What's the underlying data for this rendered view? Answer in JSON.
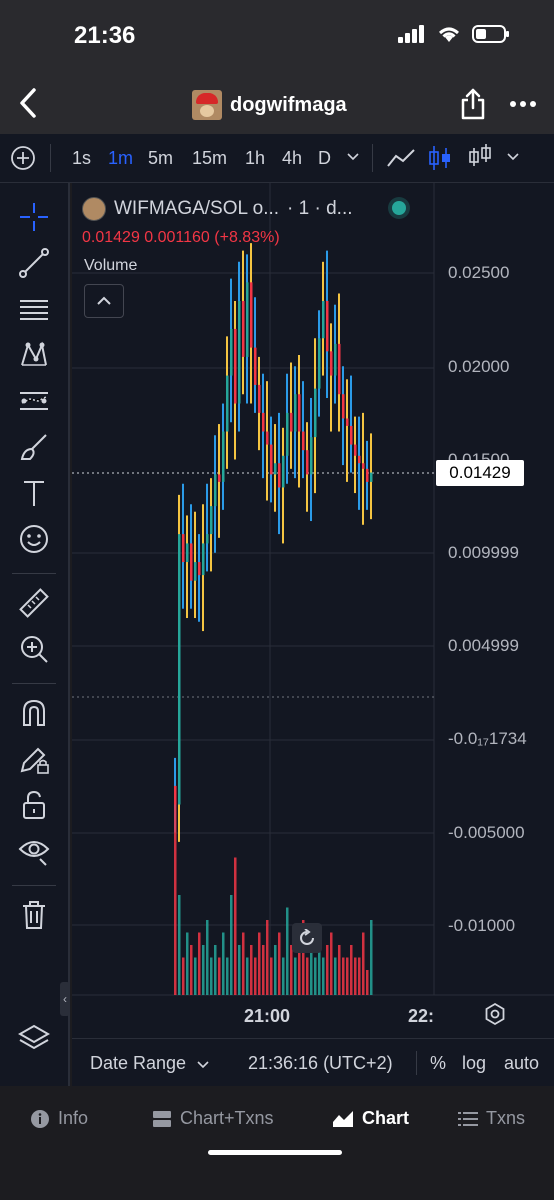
{
  "status_bar": {
    "time": "21:36"
  },
  "nav": {
    "title": "dogwifmaga"
  },
  "toolbar": {
    "intervals": [
      "1s",
      "1m",
      "5m",
      "15m",
      "1h",
      "4h",
      "D"
    ],
    "active_interval": "1m"
  },
  "legend": {
    "symbol": "WIFMAGA/SOL o...",
    "interval_info": "· 1 · d...",
    "ohlc": "0.01429 0.001160 (+8.83%)",
    "volume_label": "Volume"
  },
  "price_axis": {
    "labels": [
      "0.02500",
      "0.02000",
      "0.01500",
      "0.009999",
      "0.004999",
      "-0.0₁₇1734",
      "-0.005000",
      "-0.01000"
    ],
    "current_price": "0.01429"
  },
  "time_axis": {
    "labels": [
      "21:00",
      "22:"
    ]
  },
  "bottom_controls": {
    "date_range": "Date Range",
    "clock": "21:36:16 (UTC+2)",
    "percent": "%",
    "log": "log",
    "auto": "auto"
  },
  "tabs": [
    {
      "label": "Info",
      "icon": "info-icon"
    },
    {
      "label": "Chart+Txns",
      "icon": "split-icon"
    },
    {
      "label": "Chart",
      "icon": "chart-icon",
      "active": true
    },
    {
      "label": "Txns",
      "icon": "list-icon"
    }
  ],
  "colors": {
    "up": "#26a69a",
    "down": "#f23645",
    "wick_up": "#f5c542",
    "wick_alt": "#2b9be8",
    "accent": "#2962ff",
    "background": "#131722"
  },
  "chart_data": {
    "type": "candlestick",
    "price_axis_labels": [
      0.025,
      0.02,
      0.015,
      0.009999,
      0.004999,
      -0.005,
      -0.01
    ],
    "last_price": 0.01429,
    "change": 0.00116,
    "change_pct": 8.83,
    "price_series": [
      -0.0035,
      0.011,
      0.0095,
      0.0105,
      0.0085,
      0.0095,
      0.0088,
      0.0105,
      0.011,
      0.0125,
      0.0142,
      0.0138,
      0.0165,
      0.0195,
      0.022,
      0.018,
      0.0235,
      0.0205,
      0.0245,
      0.021,
      0.019,
      0.0175,
      0.0165,
      0.0158,
      0.0142,
      0.0148,
      0.0135,
      0.0152,
      0.0175,
      0.0165,
      0.0185,
      0.0165,
      0.0155,
      0.0142,
      0.0162,
      0.0188,
      0.0215,
      0.0235,
      0.0208,
      0.0195,
      0.0212,
      0.0185,
      0.0172,
      0.0168,
      0.0158,
      0.0152,
      0.0148,
      0.0145,
      0.0138,
      0.0143
    ],
    "volume_series": [
      1.6,
      0.8,
      0.3,
      0.5,
      0.4,
      0.3,
      0.5,
      0.4,
      0.6,
      0.3,
      0.4,
      0.3,
      0.5,
      0.3,
      0.8,
      1.1,
      0.4,
      0.5,
      0.3,
      0.4,
      0.3,
      0.5,
      0.4,
      0.6,
      0.3,
      0.4,
      0.5,
      0.3,
      0.7,
      0.4,
      0.3,
      0.4,
      0.6,
      0.3,
      0.5,
      0.3,
      0.4,
      0.3,
      0.4,
      0.5,
      0.3,
      0.4,
      0.3,
      0.3,
      0.4,
      0.3,
      0.3,
      0.5,
      0.2,
      0.6
    ]
  }
}
